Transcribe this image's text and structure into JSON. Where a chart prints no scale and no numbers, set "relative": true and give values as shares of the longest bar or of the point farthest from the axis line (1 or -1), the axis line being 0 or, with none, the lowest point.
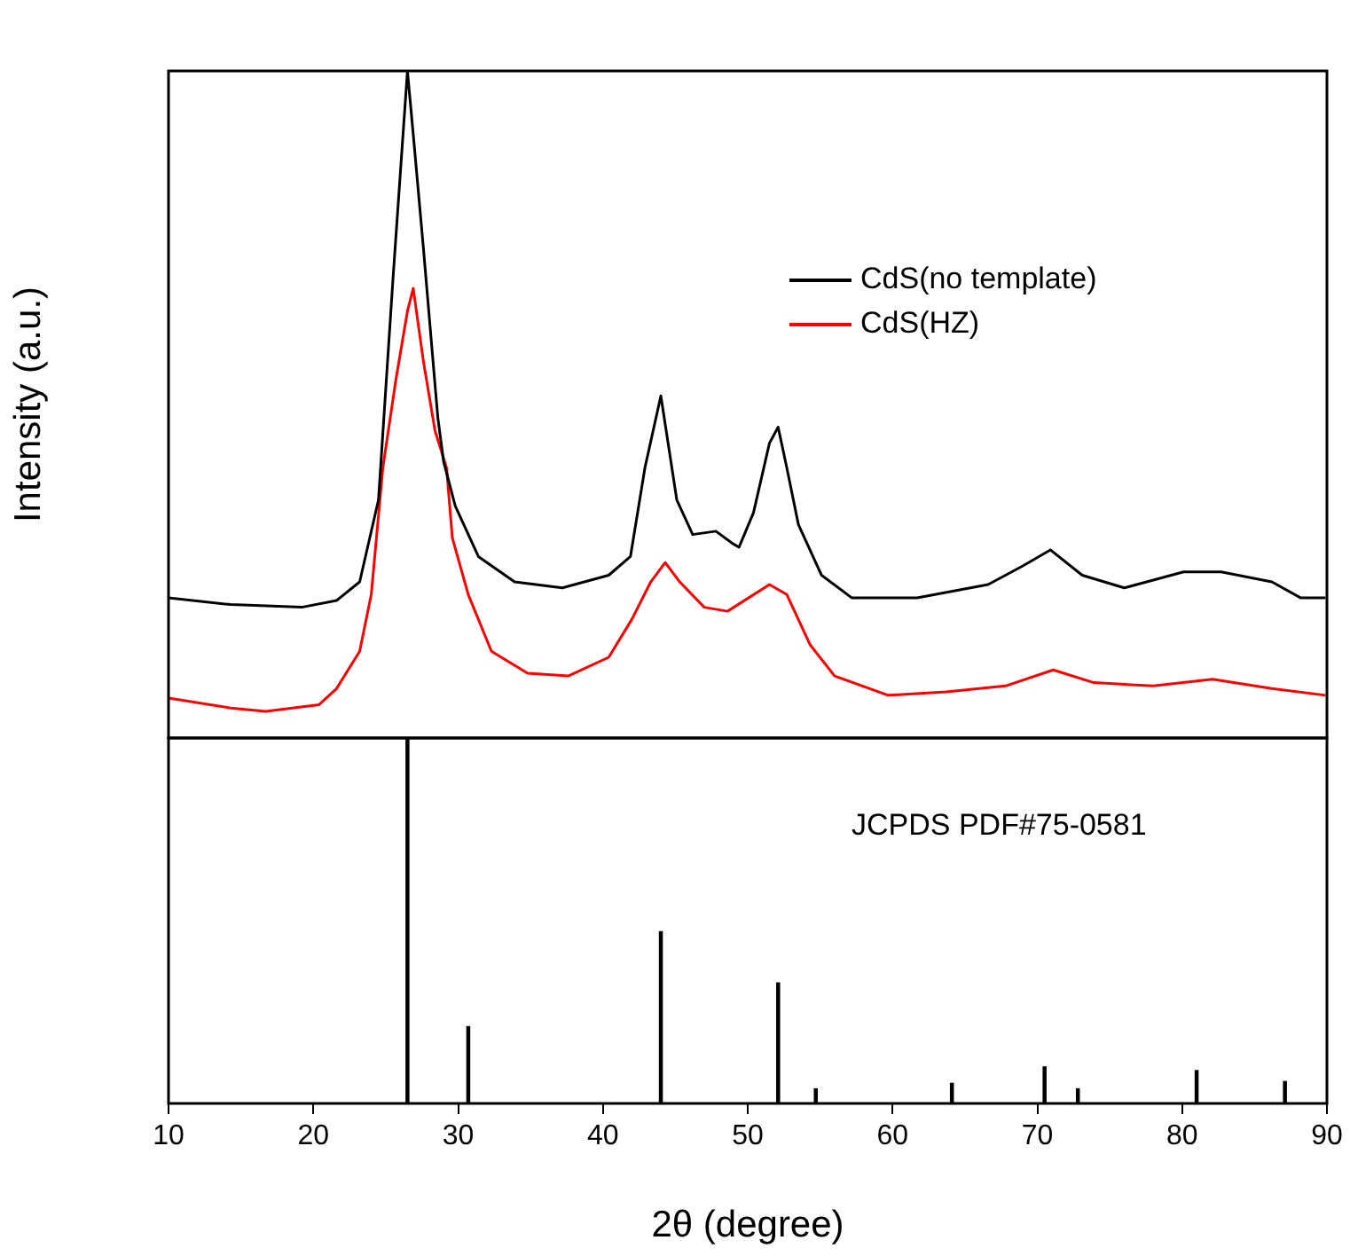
{
  "chart_data": [
    {
      "type": "line",
      "ylabel": "Intensity (a.u.)",
      "relative": true,
      "xlim": [
        10,
        90
      ],
      "xticks": [
        10,
        20,
        30,
        40,
        50,
        60,
        70,
        80,
        90
      ],
      "tick_labels": false,
      "legend": "top right",
      "grid": false,
      "marker": "none",
      "line_style": "solid",
      "series": [
        {
          "name": "CdS(no template)",
          "color": "#000000",
          "x": [
            10,
            14.3,
            19.2,
            21.6,
            23.2,
            24.5,
            25.5,
            26.5,
            26.9,
            27.6,
            28.6,
            29.0,
            29.8,
            31.4,
            33.9,
            37.2,
            40.4,
            41.9,
            42.9,
            44.0,
            45.1,
            46.2,
            47.8,
            49.0,
            49.4,
            50.4,
            51.5,
            52.1,
            52.7,
            53.5,
            55.1,
            57.2,
            61.7,
            66.6,
            69.0,
            70.9,
            73.1,
            76.0,
            80.1,
            82.7,
            86.2,
            88.2,
            89.9
          ],
          "values": [
            0.21,
            0.2,
            0.196,
            0.206,
            0.234,
            0.357,
            0.688,
            1.0,
            0.905,
            0.735,
            0.48,
            0.414,
            0.348,
            0.272,
            0.234,
            0.225,
            0.244,
            0.272,
            0.405,
            0.513,
            0.357,
            0.305,
            0.31,
            0.291,
            0.286,
            0.338,
            0.442,
            0.466,
            0.405,
            0.32,
            0.244,
            0.21,
            0.21,
            0.23,
            0.258,
            0.282,
            0.244,
            0.225,
            0.249,
            0.249,
            0.234,
            0.21,
            0.21
          ]
        },
        {
          "name": "CdS(HZ)",
          "color": "#ff0000",
          "x": [
            10,
            14.3,
            16.7,
            20.4,
            21.6,
            23.2,
            24.0,
            24.8,
            25.7,
            26.5,
            26.9,
            27.6,
            28.4,
            29.2,
            29.6,
            30.7,
            32.3,
            34.8,
            37.6,
            40.4,
            42.0,
            43.3,
            44.3,
            45.3,
            47.0,
            48.6,
            51.5,
            52.7,
            54.3,
            56.0,
            59.7,
            63.7,
            67.8,
            71.1,
            73.9,
            78.0,
            82.1,
            86.2,
            89.9
          ],
          "values": [
            0.06,
            0.045,
            0.04,
            0.05,
            0.074,
            0.13,
            0.215,
            0.405,
            0.537,
            0.64,
            0.674,
            0.565,
            0.461,
            0.405,
            0.3,
            0.215,
            0.13,
            0.097,
            0.093,
            0.121,
            0.178,
            0.234,
            0.263,
            0.234,
            0.196,
            0.19,
            0.23,
            0.215,
            0.14,
            0.093,
            0.064,
            0.069,
            0.078,
            0.102,
            0.083,
            0.078,
            0.088,
            0.074,
            0.064
          ]
        }
      ]
    },
    {
      "type": "bar",
      "xlabel": "2θ (degree)",
      "relative": true,
      "xlim": [
        10,
        90
      ],
      "xticks": [
        10,
        20,
        30,
        40,
        50,
        60,
        70,
        80,
        90
      ],
      "grid": false,
      "legend": false,
      "color": "#000000",
      "annotations": [
        "JCPDS PDF#75-0581"
      ],
      "x": [
        26.5,
        30.7,
        44.0,
        52.1,
        54.7,
        64.1,
        70.5,
        72.8,
        81.0,
        87.1
      ],
      "values": [
        1.0,
        0.21,
        0.47,
        0.33,
        0.04,
        0.055,
        0.1,
        0.04,
        0.09,
        0.06
      ]
    }
  ]
}
